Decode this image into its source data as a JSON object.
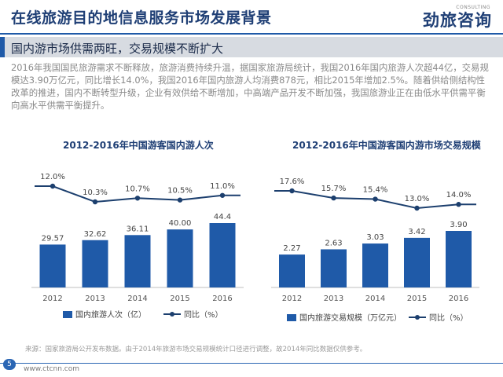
{
  "header": {
    "title": "在线旅游目的地信息服务市场发展背景",
    "logo_text": "劲旅咨询",
    "logo_sub": "CONSULTING"
  },
  "subtitle": "国内游市场供需两旺，交易规模不断扩大",
  "paragraph": "2016年我国国民旅游需求不断释放，旅游消费持续升温，据国家旅游局统计，我国2016年国内旅游人次超44亿，交易规模达3.90万亿元，同比增长14.0%，我国2016年国内旅游人均消费878元，相比2015年增加2.5%。随着供给侧结构性改革的推进，国内不断转型升级，企业有效供给不断增加，中高端产品开发不断加强，我国旅游业正在由低水平供需平衡向高水平供需平衡提升。",
  "source_note": "来源：国家旅游局公开发布数据。由于2014年旅游市场交易规模统计口径进行调整，故2014年同比数据仅供参考。",
  "footer": {
    "page_number": "5",
    "url": "www.ctcnn.com"
  },
  "colors": {
    "bar": "#1f5aa8",
    "line": "#1c3f6e",
    "title": "#1f3f75"
  },
  "chart_data": [
    {
      "type": "bar",
      "title": "2012-2016年中国游客国内游人次",
      "categories": [
        "2012",
        "2013",
        "2014",
        "2015",
        "2016"
      ],
      "series": [
        {
          "name": "国内旅游人次（亿）",
          "type": "bar",
          "values": [
            29.57,
            32.62,
            36.11,
            40.0,
            44.4
          ],
          "labels": [
            "29.57",
            "32.62",
            "36.11",
            "40.00",
            "44.4"
          ]
        },
        {
          "name": "同比（%）",
          "type": "line",
          "values": [
            12.0,
            10.3,
            10.7,
            10.5,
            11.0
          ],
          "labels": [
            "12.0%",
            "10.3%",
            "10.7%",
            "10.5%",
            "11.0%"
          ]
        }
      ],
      "legend_position": "bottom"
    },
    {
      "type": "bar",
      "title": "2012-2016年中国游客国内游市场交易规模",
      "categories": [
        "2012",
        "2013",
        "2014",
        "2015",
        "2016"
      ],
      "series": [
        {
          "name": "国内旅游交易规模（万亿元）",
          "type": "bar",
          "values": [
            2.27,
            2.63,
            3.03,
            3.42,
            3.9
          ],
          "labels": [
            "2.27",
            "2.63",
            "3.03",
            "3.42",
            "3.90"
          ]
        },
        {
          "name": "同比（%）",
          "type": "line",
          "values": [
            17.6,
            15.7,
            15.4,
            13.0,
            14.0
          ],
          "labels": [
            "17.6%",
            "15.7%",
            "15.4%",
            "13.0%",
            "14.0%"
          ]
        }
      ],
      "legend_position": "bottom"
    }
  ]
}
